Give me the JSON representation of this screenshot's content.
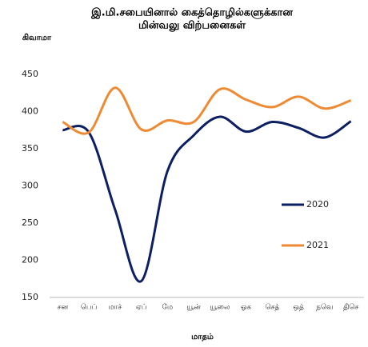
{
  "chart_data": {
    "type": "line",
    "title": [
      "இ.மி.சபையினால் கைத்தொழில்களுக்கான",
      "மின்வலு விற்பனைகள்"
    ],
    "y_label": "கிவாமா",
    "x_label": "மாதம்",
    "categories": [
      "சன",
      "பெப்",
      "மாச்",
      "ஏப்",
      "மே",
      "யூன்",
      "யூலை",
      "ஓக",
      "செத்",
      "ஒத்",
      "நவெ",
      "திசெ"
    ],
    "series": [
      {
        "name": "2020",
        "color": "#0d1f63",
        "values": [
          375,
          372,
          268,
          172,
          320,
          368,
          393,
          373,
          386,
          378,
          365,
          387
        ]
      },
      {
        "name": "2021",
        "color": "#ee8a33",
        "values": [
          386,
          372,
          432,
          376,
          388,
          386,
          430,
          416,
          406,
          420,
          404,
          415
        ]
      }
    ],
    "ylim": [
      150,
      450
    ],
    "yticks": [
      150,
      200,
      250,
      300,
      350,
      400,
      450
    ]
  }
}
